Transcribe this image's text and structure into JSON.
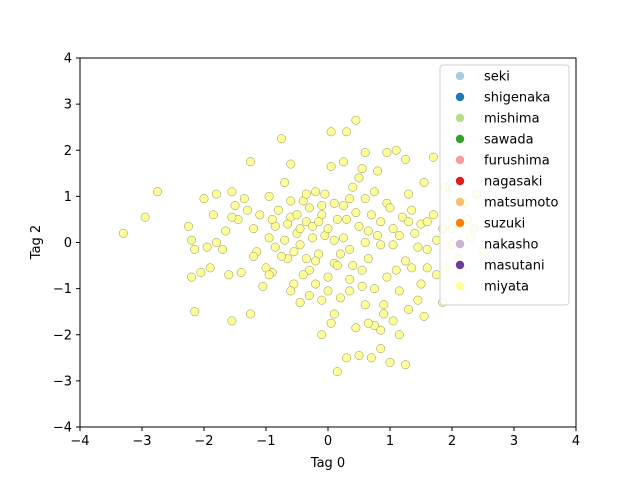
{
  "chart_data": {
    "type": "scatter",
    "title": "",
    "xlabel": "Tag 0",
    "ylabel": "Tag 2",
    "xlim": [
      -4,
      4
    ],
    "ylim": [
      -4,
      4
    ],
    "xticks": [
      "−4",
      "−3",
      "−2",
      "−1",
      "0",
      "1",
      "2",
      "3",
      "4"
    ],
    "yticks": [
      "−4",
      "−3",
      "−2",
      "−1",
      "0",
      "1",
      "2",
      "3",
      "4"
    ],
    "grid": false,
    "legend_position": "top-right",
    "series": [
      {
        "name": "seki",
        "color": "#a6cee3",
        "points": []
      },
      {
        "name": "shigenaka",
        "color": "#1f78b4",
        "points": []
      },
      {
        "name": "mishima",
        "color": "#b2df8a",
        "points": []
      },
      {
        "name": "sawada",
        "color": "#33a02c",
        "points": []
      },
      {
        "name": "furushima",
        "color": "#fb9a99",
        "points": []
      },
      {
        "name": "nagasaki",
        "color": "#e31a1c",
        "points": []
      },
      {
        "name": "matsumoto",
        "color": "#fdbf6f",
        "points": []
      },
      {
        "name": "suzuki",
        "color": "#ff7f00",
        "points": []
      },
      {
        "name": "nakasho",
        "color": "#cab2d6",
        "points": []
      },
      {
        "name": "masutani",
        "color": "#6a3d9a",
        "points": []
      },
      {
        "name": "miyata",
        "color": "#ffff99",
        "points": [
          [
            -3.3,
            0.2
          ],
          [
            -2.95,
            0.55
          ],
          [
            -2.75,
            1.1
          ],
          [
            -2.2,
            -0.75
          ],
          [
            -2.15,
            -1.5
          ],
          [
            -2.05,
            -0.65
          ],
          [
            -2.2,
            0.05
          ],
          [
            -2.15,
            -0.15
          ],
          [
            -2.0,
            0.95
          ],
          [
            -1.85,
            0.6
          ],
          [
            -1.8,
            1.05
          ],
          [
            -1.7,
            -0.15
          ],
          [
            -1.65,
            0.25
          ],
          [
            -1.6,
            -0.7
          ],
          [
            -1.55,
            1.1
          ],
          [
            -1.5,
            0.8
          ],
          [
            -1.45,
            0.5
          ],
          [
            -1.4,
            -0.65
          ],
          [
            -1.3,
            0.7
          ],
          [
            -1.25,
            1.75
          ],
          [
            -1.2,
            0.3
          ],
          [
            -1.15,
            -0.2
          ],
          [
            -1.1,
            0.6
          ],
          [
            -1.05,
            -0.95
          ],
          [
            -0.95,
            0.1
          ],
          [
            -0.9,
            -0.65
          ],
          [
            -0.85,
            0.35
          ],
          [
            -0.8,
            0.7
          ],
          [
            -0.75,
            2.25
          ],
          [
            -0.7,
            1.3
          ],
          [
            -0.65,
            -0.35
          ],
          [
            -0.6,
            0.55
          ],
          [
            -0.55,
            -0.9
          ],
          [
            -0.5,
            0.2
          ],
          [
            -0.45,
            -0.05
          ],
          [
            -0.4,
            0.9
          ],
          [
            -0.35,
            0.45
          ],
          [
            -0.3,
            -0.6
          ],
          [
            -0.25,
            0.35
          ],
          [
            -0.2,
            1.1
          ],
          [
            -0.15,
            -0.25
          ],
          [
            -0.1,
            0.6
          ],
          [
            -0.05,
            0.15
          ],
          [
            0.0,
            -0.75
          ],
          [
            0.05,
            1.65
          ],
          [
            0.05,
            2.4
          ],
          [
            0.1,
            -0.45
          ],
          [
            0.15,
            0.5
          ],
          [
            0.2,
            -1.2
          ],
          [
            0.25,
            0.8
          ],
          [
            0.3,
            2.4
          ],
          [
            0.35,
            -0.15
          ],
          [
            0.4,
            1.2
          ],
          [
            0.45,
            2.65
          ],
          [
            0.5,
            0.35
          ],
          [
            0.55,
            -0.95
          ],
          [
            0.6,
            1.95
          ],
          [
            0.65,
            -0.35
          ],
          [
            0.7,
            0.6
          ],
          [
            0.75,
            -1.8
          ],
          [
            0.8,
            1.55
          ],
          [
            0.85,
            -0.05
          ],
          [
            0.9,
            -1.35
          ],
          [
            0.95,
            0.85
          ],
          [
            1.0,
            -2.6
          ],
          [
            1.05,
            0.3
          ],
          [
            1.1,
            2.0
          ],
          [
            1.15,
            -1.05
          ],
          [
            1.2,
            0.55
          ],
          [
            1.25,
            -2.65
          ],
          [
            1.3,
            1.05
          ],
          [
            1.35,
            -0.55
          ],
          [
            1.4,
            0.2
          ],
          [
            1.45,
            -1.25
          ],
          [
            1.5,
            0.4
          ],
          [
            1.55,
            -1.6
          ],
          [
            1.6,
            -0.15
          ],
          [
            1.7,
            1.85
          ],
          [
            1.75,
            0.05
          ],
          [
            1.85,
            -1.3
          ],
          [
            1.9,
            -0.55
          ],
          [
            2.0,
            0.3
          ],
          [
            2.1,
            -0.35
          ],
          [
            2.2,
            0.85
          ],
          [
            2.3,
            0.1
          ],
          [
            2.4,
            1.05
          ],
          [
            2.5,
            -0.2
          ],
          [
            0.15,
            -2.8
          ],
          [
            -0.1,
            -2.0
          ],
          [
            0.3,
            -2.5
          ],
          [
            0.5,
            -2.45
          ],
          [
            0.7,
            -2.5
          ],
          [
            0.85,
            -2.3
          ],
          [
            1.15,
            -2.0
          ],
          [
            0.45,
            -1.85
          ],
          [
            0.65,
            -1.75
          ],
          [
            -0.3,
            -1.15
          ],
          [
            -0.1,
            -1.25
          ],
          [
            0.1,
            -1.55
          ],
          [
            0.05,
            -1.75
          ],
          [
            -0.45,
            -1.3
          ],
          [
            -0.6,
            -1.05
          ],
          [
            -1.25,
            -1.55
          ],
          [
            -1.55,
            -1.7
          ],
          [
            -1.8,
            0.0
          ],
          [
            -2.25,
            0.35
          ],
          [
            -1.95,
            -0.1
          ],
          [
            -1.35,
            0.95
          ],
          [
            -0.95,
            1.0
          ],
          [
            -0.6,
            1.7
          ],
          [
            -0.35,
            1.05
          ],
          [
            -0.05,
            1.05
          ],
          [
            0.25,
            1.75
          ],
          [
            0.55,
            1.6
          ],
          [
            0.95,
            1.95
          ],
          [
            1.25,
            1.8
          ],
          [
            1.55,
            1.3
          ],
          [
            1.9,
            1.2
          ],
          [
            2.25,
            0.5
          ],
          [
            2.0,
            -0.05
          ],
          [
            1.75,
            -0.7
          ],
          [
            1.5,
            -0.9
          ],
          [
            1.25,
            -0.4
          ],
          [
            1.05,
            -0.05
          ],
          [
            0.95,
            -0.75
          ],
          [
            0.75,
            -1.0
          ],
          [
            0.55,
            -0.6
          ],
          [
            0.35,
            -0.8
          ],
          [
            0.15,
            -0.5
          ],
          [
            0.25,
            0.1
          ],
          [
            0.45,
            0.65
          ],
          [
            0.65,
            0.25
          ],
          [
            0.85,
            0.45
          ],
          [
            1.0,
            0.75
          ],
          [
            1.35,
            0.7
          ],
          [
            1.6,
            0.45
          ],
          [
            1.1,
            -0.6
          ],
          [
            0.9,
            -1.55
          ],
          [
            1.3,
            -1.45
          ],
          [
            1.05,
            -1.7
          ],
          [
            0.6,
            -1.35
          ],
          [
            0.35,
            -1.05
          ],
          [
            -0.2,
            -0.4
          ],
          [
            -0.4,
            -0.7
          ],
          [
            -0.75,
            -0.3
          ],
          [
            -1.0,
            -0.55
          ],
          [
            -1.2,
            -0.3
          ],
          [
            -0.9,
            0.5
          ],
          [
            -0.7,
            0.05
          ],
          [
            -0.5,
            0.6
          ],
          [
            -0.3,
            0.75
          ],
          [
            -0.15,
            0.45
          ],
          [
            0.0,
            0.3
          ],
          [
            0.1,
            0.05
          ],
          [
            -0.25,
            0.1
          ],
          [
            -0.45,
            0.3
          ],
          [
            -0.65,
            0.4
          ],
          [
            -0.85,
            -0.1
          ],
          [
            -0.55,
            -0.2
          ],
          [
            -0.35,
            -0.35
          ],
          [
            0.2,
            -0.25
          ],
          [
            0.4,
            -0.5
          ],
          [
            0.6,
            0.0
          ],
          [
            0.8,
            0.15
          ],
          [
            1.15,
            0.15
          ],
          [
            1.45,
            -0.1
          ],
          [
            1.7,
            0.6
          ],
          [
            1.3,
            0.45
          ],
          [
            0.75,
            1.1
          ],
          [
            0.5,
            1.4
          ],
          [
            0.35,
            0.95
          ],
          [
            0.1,
            0.85
          ],
          [
            -0.1,
            0.8
          ],
          [
            -0.6,
            0.9
          ],
          [
            -1.55,
            0.55
          ],
          [
            -1.9,
            -0.55
          ],
          [
            -0.95,
            -0.7
          ],
          [
            -0.2,
            -0.9
          ],
          [
            0.0,
            -1.05
          ],
          [
            0.85,
            -1.9
          ],
          [
            1.6,
            -0.55
          ],
          [
            2.15,
            -0.6
          ],
          [
            1.85,
            0.3
          ],
          [
            2.35,
            0.3
          ],
          [
            0.6,
            0.95
          ],
          [
            0.3,
            0.5
          ]
        ]
      }
    ]
  }
}
